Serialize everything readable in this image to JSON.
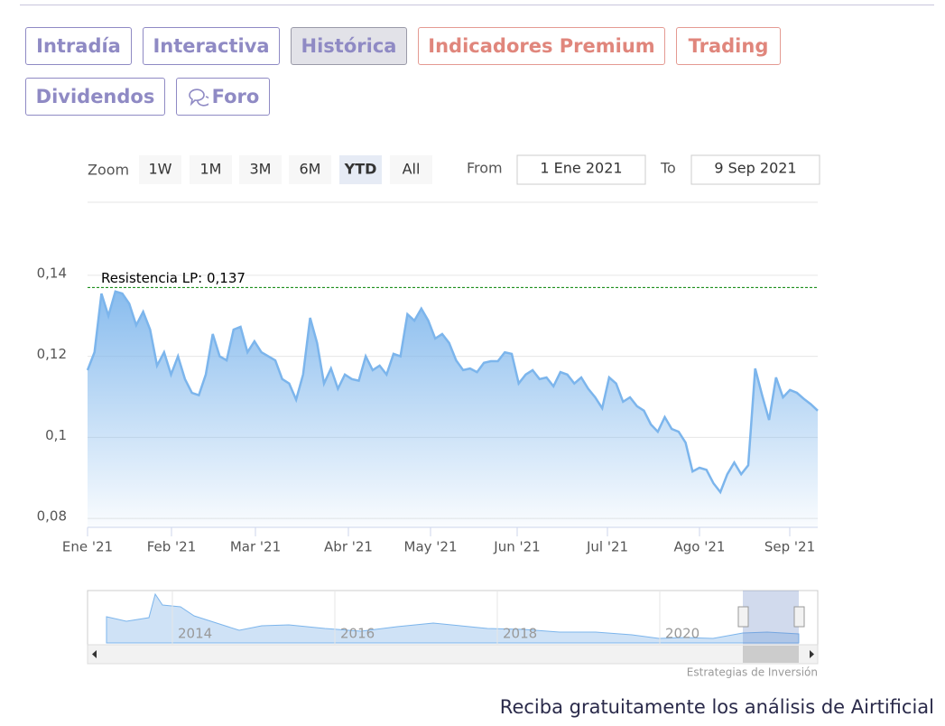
{
  "tabs": [
    "Intradía",
    "Interactiva",
    "Histórica",
    "Indicadores Premium",
    "Trading",
    "Dividendos",
    "Foro"
  ],
  "range_selector": {
    "zoom_label": "Zoom",
    "buttons": [
      "1W",
      "1M",
      "3M",
      "6M",
      "YTD",
      "All"
    ],
    "from_label": "From",
    "from": "1 Ene 2021",
    "to_label": "To",
    "to": "9 Sep 2021"
  },
  "chart_data": {
    "type": "area",
    "color": "#7cb5ec",
    "values": [
      0.1166,
      0.121,
      0.1355,
      0.13,
      0.136,
      0.1355,
      0.133,
      0.1277,
      0.131,
      0.1266,
      0.1177,
      0.121,
      0.1155,
      0.12,
      0.1144,
      0.111,
      0.1104,
      0.1155,
      0.1255,
      0.12,
      0.119,
      0.1266,
      0.1273,
      0.121,
      0.1237,
      0.121,
      0.12,
      0.119,
      0.1144,
      0.1133,
      0.1093,
      0.1155,
      0.1295,
      0.1233,
      0.1133,
      0.117,
      0.112,
      0.1155,
      0.1144,
      0.114,
      0.12,
      0.1166,
      0.1177,
      0.1155,
      0.1206,
      0.12,
      0.1304,
      0.1288,
      0.1318,
      0.1288,
      0.1244,
      0.1255,
      0.1233,
      0.119,
      0.1166,
      0.117,
      0.1161,
      0.1184,
      0.1188,
      0.1188,
      0.121,
      0.1206,
      0.1133,
      0.1155,
      0.1166,
      0.1144,
      0.1148,
      0.1126,
      0.1161,
      0.1155,
      0.1133,
      0.1148,
      0.112,
      0.1099,
      0.1072,
      0.1148,
      0.1133,
      0.1088,
      0.1099,
      0.1077,
      0.1066,
      0.1032,
      0.1014,
      0.105,
      0.1021,
      0.1014,
      0.0987,
      0.0916,
      0.0925,
      0.092,
      0.0887,
      0.0865,
      0.0909,
      0.0938,
      0.0909,
      0.0931,
      0.117,
      0.1104,
      0.1043,
      0.1148,
      0.1099,
      0.1117,
      0.111,
      0.1095,
      0.1082,
      0.1066
    ],
    "ylim": [
      0.0778,
      0.1578
    ],
    "yticks": [
      {
        "value": 0.08,
        "label": "0,08"
      },
      {
        "value": 0.1,
        "label": "0,1"
      },
      {
        "value": 0.12,
        "label": "0,12"
      },
      {
        "value": 0.14,
        "label": "0,14"
      }
    ],
    "x_labels": [
      "Ene '21",
      "Feb '21",
      "Mar '21",
      "Abr '21",
      "May '21",
      "Jun '21",
      "Jul '21",
      "Ago '21",
      "Sep '21"
    ],
    "grid": true,
    "annotation": {
      "label": "Resistencia LP: 0,137",
      "value": 0.137,
      "color": "#008000"
    }
  },
  "navigator": {
    "labels": [
      "2014",
      "2016",
      "2018",
      "2020"
    ]
  },
  "credits": "Estrategias de Inversión",
  "footer": "Reciba gratuitamente los análisis de Airtificial"
}
